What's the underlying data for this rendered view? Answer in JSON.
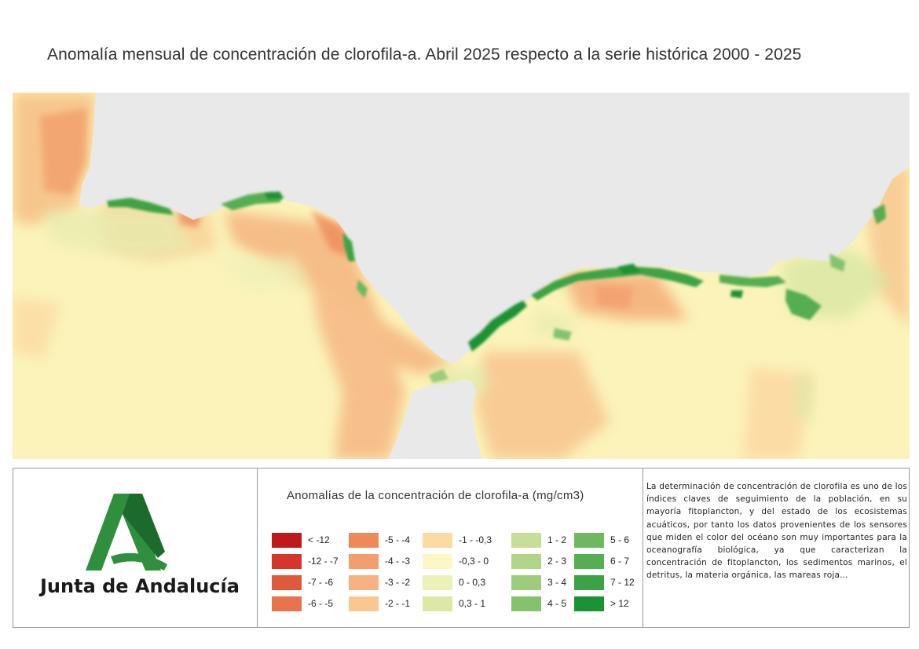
{
  "title": "Anomalía mensual de concentración de clorofila-a. Abril 2025 respecto a la serie histórica 2000 - 2025",
  "organization": "Junta de Andalucía",
  "legend": {
    "title": "Anomalías de la concentración de clorofila-a (mg/cm3)",
    "columns": [
      [
        {
          "label": "< -12",
          "color": "#c0191c"
        },
        {
          "label": "-12 - -7",
          "color": "#d5352a"
        },
        {
          "label": "-7 - -6",
          "color": "#df5a3b"
        },
        {
          "label": "-6 - -5",
          "color": "#e9744c"
        }
      ],
      [
        {
          "label": "-5 - -4",
          "color": "#ee8a5a"
        },
        {
          "label": "-4 - -3",
          "color": "#f29f6d"
        },
        {
          "label": "-3 - -2",
          "color": "#f6b380"
        },
        {
          "label": "-2 - -1",
          "color": "#f9c892"
        }
      ],
      [
        {
          "label": "-1 - -0,3",
          "color": "#fcdaa3"
        },
        {
          "label": "-0,3 - 0",
          "color": "#fdf6c5"
        },
        {
          "label": "0 - 0,3",
          "color": "#eef1b7"
        },
        {
          "label": "0,3 - 1",
          "color": "#dde8a6"
        }
      ],
      [
        {
          "label": "1 - 2",
          "color": "#c8de98"
        },
        {
          "label": "2 - 3",
          "color": "#b2d58a"
        },
        {
          "label": "3 - 4",
          "color": "#9ccc7c"
        },
        {
          "label": "4 - 5",
          "color": "#86c26e"
        }
      ],
      [
        {
          "label": "5 - 6",
          "color": "#6eb860"
        },
        {
          "label": "6 - 7",
          "color": "#55ae51"
        },
        {
          "label": "7 - 12",
          "color": "#3ca344"
        },
        {
          "label": "> 12",
          "color": "#1a9336"
        }
      ]
    ]
  },
  "description": "La determinación de concentración de clorofila es uno de los índices claves de seguimiento de la población, en su mayoría fitoplancton, y del estado de los ecosistemas acuáticos, por tanto los datos provenientes de los sensores que miden el color del océano son muy importantes para la oceanografía biológica, ya que caracterizan la concentración de fitoplancton, los sedimentos marinos, el detritus, la materia orgánica, las mareas roja...",
  "map": {
    "land_color": "#e9e9e9",
    "sea_base_color": "#fbf3b9"
  }
}
